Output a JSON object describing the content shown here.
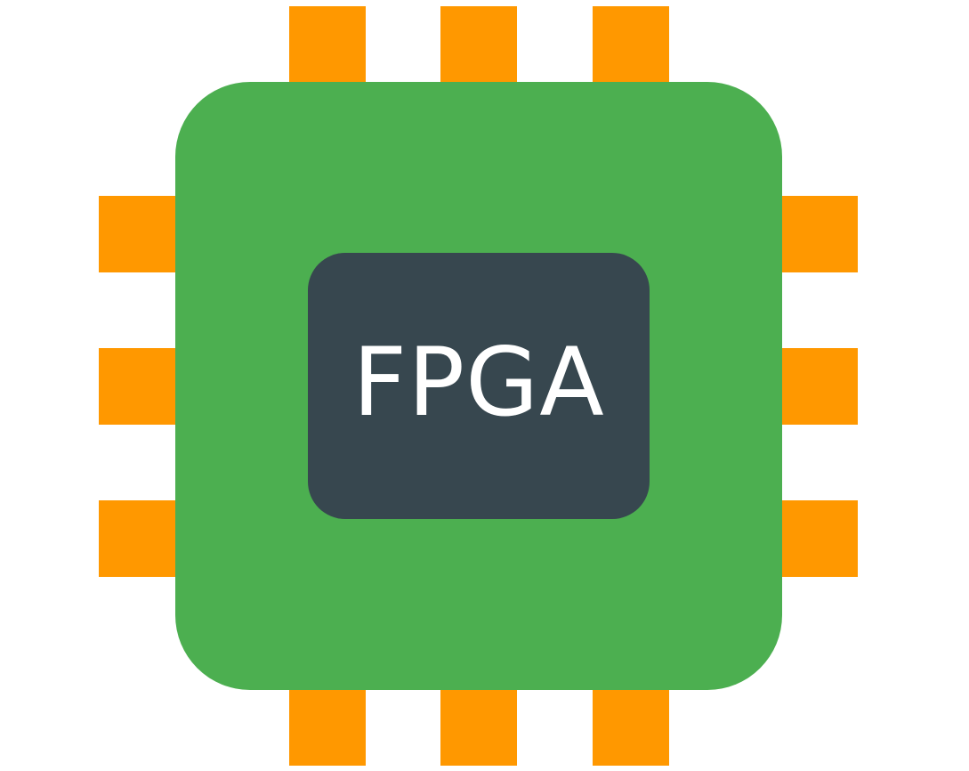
{
  "chip": {
    "label": "FPGA",
    "colors": {
      "body": "#4caf50",
      "core": "#37474f",
      "pins": "#ff9800",
      "label": "#ffffff"
    },
    "pins": {
      "top": 3,
      "bottom": 3,
      "left": 3,
      "right": 3
    }
  }
}
